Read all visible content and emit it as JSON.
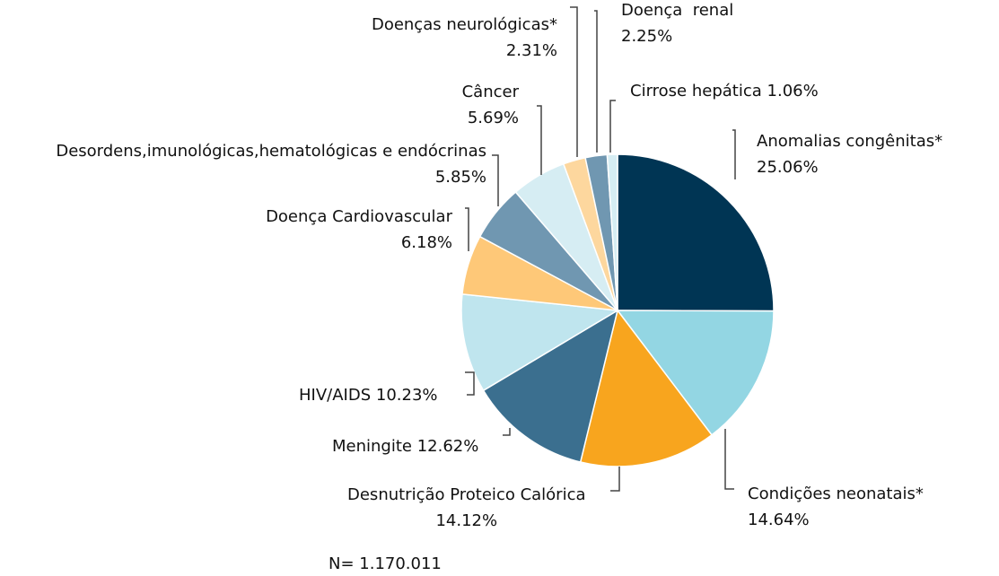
{
  "chart_data": {
    "type": "pie",
    "title": "",
    "slices": [
      {
        "label": "Anomalias congênitas*",
        "value": 25.06,
        "text": "25.06%",
        "color": "#003554"
      },
      {
        "label": "Condições neonatais*",
        "value": 14.64,
        "text": "14.64%",
        "color": "#93d6e3"
      },
      {
        "label": "Desnutrição Proteico Calórica",
        "value": 14.12,
        "text": "14.12%",
        "color": "#f8a51e"
      },
      {
        "label": "Meningite",
        "value": 12.62,
        "text": "12.62%",
        "color": "#3b6f8f"
      },
      {
        "label": "HIV/AIDS",
        "value": 10.23,
        "text": "10.23%",
        "color": "#bfe5ee"
      },
      {
        "label": "Doença Cardiovascular",
        "value": 6.18,
        "text": "6.18%",
        "color": "#fec878"
      },
      {
        "label": "Desordens,imunológicas,hematológicas e endócrinas",
        "value": 5.85,
        "text": "5.85%",
        "color": "#7097b1"
      },
      {
        "label": "Câncer",
        "value": 5.69,
        "text": "5.69%",
        "color": "#d6edf3"
      },
      {
        "label": "Doenças neurológicas*",
        "value": 2.31,
        "text": "2.31%",
        "color": "#fdd79e"
      },
      {
        "label": "Doença  renal",
        "value": 2.25,
        "text": "2.25%",
        "color": "#7097b1"
      },
      {
        "label": "Cirrose hepática",
        "value": 1.06,
        "text": "1.06%",
        "color": "#d6edf3"
      }
    ],
    "note": "N= 1.170.011"
  }
}
